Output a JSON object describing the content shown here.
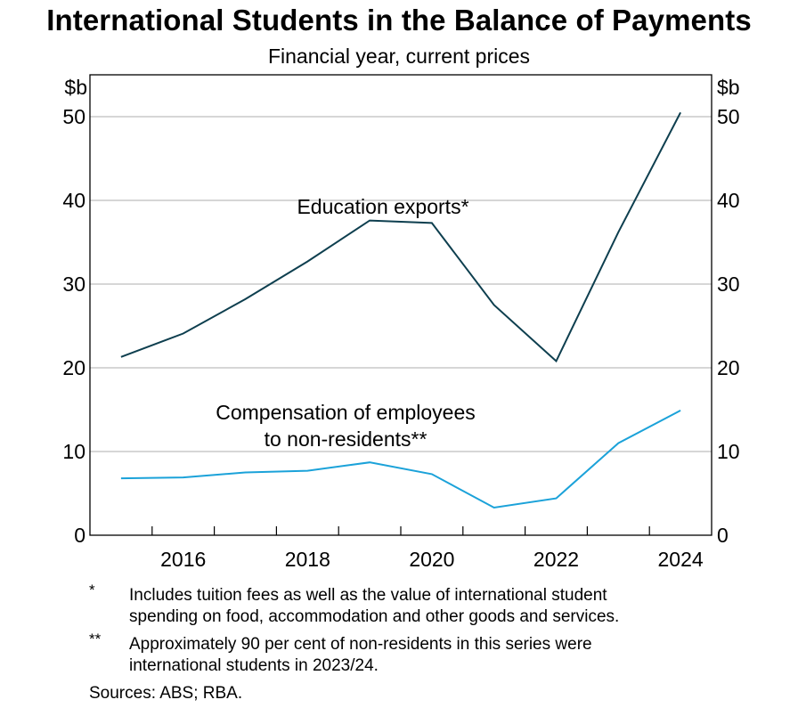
{
  "title": "International Students in the Balance of Payments",
  "subtitle": "Financial year, current prices",
  "chart_data": {
    "type": "line",
    "title": "International Students in the Balance of Payments",
    "subtitle": "Financial year, current prices",
    "x": [
      2015,
      2016,
      2017,
      2018,
      2019,
      2020,
      2021,
      2022,
      2023,
      2024
    ],
    "xticks": [
      2016,
      2018,
      2020,
      2022,
      2024
    ],
    "xlim": [
      2014.5,
      2024.5
    ],
    "ylim": [
      0,
      55
    ],
    "yticks": [
      0,
      10,
      20,
      30,
      40,
      50
    ],
    "yunit_left": "$b",
    "yunit_right": "$b",
    "grid": true,
    "series": [
      {
        "name": "Education exports*",
        "color": "#0e3f4f",
        "values": [
          21.3,
          24.1,
          28.2,
          32.7,
          37.6,
          37.3,
          27.5,
          20.8,
          36.2,
          50.5
        ]
      },
      {
        "name": "Compensation of employees to non-residents**",
        "label_lines": [
          "Compensation of employees",
          "to non-residents**"
        ],
        "color": "#1ba2d9",
        "values": [
          6.8,
          6.9,
          7.5,
          7.7,
          8.7,
          7.3,
          3.3,
          4.4,
          11.0,
          14.9
        ]
      }
    ]
  },
  "footnotes": [
    {
      "mark": "*",
      "lines": [
        "Includes tuition fees as well as the value of international student",
        "spending on food, accommodation and other goods and services."
      ]
    },
    {
      "mark": "**",
      "lines": [
        "Approximately 90 per cent of non-residents in this series were",
        "international students in 2023/24."
      ]
    }
  ],
  "sources": "Sources: ABS; RBA."
}
